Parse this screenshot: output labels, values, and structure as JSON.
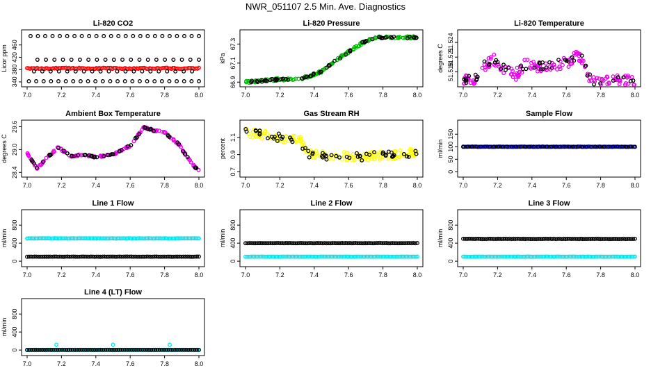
{
  "figure_title": "NWR_051107  2.5 Min. Ave. Diagnostics",
  "chart_data": [
    {
      "id": "co2",
      "type": "scatter",
      "title": "Li-820 CO2",
      "ylabel": "Licor ppm",
      "xlim": [
        7.0,
        8.0
      ],
      "xticks": [
        "7.0",
        "7.2",
        "7.4",
        "7.6",
        "7.8",
        "8.0"
      ],
      "ylim": [
        333,
        500
      ],
      "yticks": [
        {
          "v": 340,
          "label": "340"
        },
        {
          "v": 380,
          "label": "380"
        },
        {
          "v": 420,
          "label": "420"
        },
        {
          "v": 460,
          "label": "460"
        }
      ],
      "series": [
        {
          "name": "ppm",
          "color": "#ff0000",
          "pattern": "band",
          "base": 384,
          "noise": 2,
          "x_start": 7.0,
          "x_end": 8.0,
          "count": 120
        },
        {
          "name": "ppm-high",
          "color": "#000000",
          "pattern": "band",
          "base": 489,
          "noise": 0,
          "x_start": 7.02,
          "x_end": 8.0,
          "count": 24
        },
        {
          "name": "ppm-mid",
          "color": "#000000",
          "pattern": "band",
          "base": 412,
          "noise": 0,
          "x_start": 7.06,
          "x_end": 8.0,
          "count": 20
        },
        {
          "name": "ppm-below",
          "color": "#000000",
          "pattern": "band",
          "base": 374,
          "noise": 0,
          "x_start": 7.04,
          "x_end": 7.96,
          "count": 20
        },
        {
          "name": "ppm-low",
          "color": "#000000",
          "pattern": "band",
          "base": 342,
          "noise": 0,
          "x_start": 7.01,
          "x_end": 8.0,
          "count": 24
        }
      ]
    },
    {
      "id": "pressure",
      "type": "scatter",
      "title": "Li-820 Pressure",
      "ylabel": "kPa",
      "xlim": [
        7.0,
        8.0
      ],
      "xticks": [
        "7.0",
        "7.2",
        "7.4",
        "7.6",
        "7.8",
        "8.0"
      ],
      "ylim": [
        66.88,
        67.42
      ],
      "yticks": [
        {
          "v": 66.9,
          "label": "66.9"
        },
        {
          "v": 67.1,
          "label": "67.1"
        },
        {
          "v": 67.3,
          "label": "67.3"
        }
      ],
      "series": [
        {
          "name": "kPa",
          "color": "#00bb00",
          "pattern": "curve",
          "knots": [
            [
              7.0,
              66.9
            ],
            [
              7.2,
              66.93
            ],
            [
              7.32,
              66.93
            ],
            [
              7.44,
              67.01
            ],
            [
              7.56,
              67.17
            ],
            [
              7.68,
              67.31
            ],
            [
              7.75,
              67.37
            ],
            [
              8.0,
              67.37
            ]
          ],
          "noise": 0.012,
          "count": 150
        },
        {
          "name": "kPa-ref",
          "color": "#000000",
          "pattern": "curve",
          "knots": [
            [
              7.0,
              66.9
            ],
            [
              7.2,
              66.93
            ],
            [
              7.32,
              66.93
            ],
            [
              7.44,
              67.01
            ],
            [
              7.56,
              67.17
            ],
            [
              7.68,
              67.31
            ],
            [
              7.75,
              67.37
            ],
            [
              8.0,
              67.37
            ]
          ],
          "noise": 0.01,
          "count": 60
        }
      ]
    },
    {
      "id": "li820temp",
      "type": "scatter",
      "title": "Li-820 Temperature",
      "ylabel": "degrees C",
      "xlim": [
        7.0,
        8.0
      ],
      "xticks": [
        "7.0",
        "7.2",
        "7.4",
        "7.6",
        "7.8",
        "8.0"
      ],
      "ylim": [
        51.5155,
        51.526
      ],
      "yticks": [
        {
          "v": 51.518,
          "label": "51.518"
        },
        {
          "v": 51.521,
          "label": "51.521"
        },
        {
          "v": 51.524,
          "label": "51.524"
        }
      ],
      "series": [
        {
          "name": "temp",
          "color": "#ee00ee",
          "pattern": "curve",
          "knots": [
            [
              7.0,
              51.5162
            ],
            [
              7.08,
              51.5163
            ],
            [
              7.12,
              51.519
            ],
            [
              7.18,
              51.5205
            ],
            [
              7.24,
              51.5185
            ],
            [
              7.3,
              51.5172
            ],
            [
              7.36,
              51.5195
            ],
            [
              7.44,
              51.519
            ],
            [
              7.52,
              51.519
            ],
            [
              7.58,
              51.5198
            ],
            [
              7.63,
              51.52
            ],
            [
              7.66,
              51.5215
            ],
            [
              7.7,
              51.5205
            ],
            [
              7.74,
              51.5165
            ],
            [
              7.78,
              51.5162
            ],
            [
              8.0,
              51.5162
            ]
          ],
          "noise": 0.0011,
          "count": 160
        },
        {
          "name": "temp-ref",
          "color": "#000000",
          "pattern": "curve",
          "knots": [
            [
              7.0,
              51.5162
            ],
            [
              7.08,
              51.5163
            ],
            [
              7.12,
              51.519
            ],
            [
              7.18,
              51.5205
            ],
            [
              7.24,
              51.5185
            ],
            [
              7.3,
              51.5172
            ],
            [
              7.36,
              51.5195
            ],
            [
              7.44,
              51.519
            ],
            [
              7.52,
              51.519
            ],
            [
              7.58,
              51.5198
            ],
            [
              7.63,
              51.52
            ],
            [
              7.66,
              51.5215
            ],
            [
              7.7,
              51.5205
            ],
            [
              7.74,
              51.5165
            ],
            [
              7.78,
              51.5162
            ],
            [
              8.0,
              51.5162
            ]
          ],
          "noise": 0.0011,
          "count": 50
        }
      ]
    },
    {
      "id": "boxtemp",
      "type": "scatter",
      "title": "Ambient Box Temperature",
      "ylabel": "degrees C",
      "xlim": [
        7.0,
        8.0
      ],
      "xticks": [
        "7.0",
        "7.2",
        "7.4",
        "7.6",
        "7.8",
        "8.0"
      ],
      "ylim": [
        28.35,
        29.7
      ],
      "yticks": [
        {
          "v": 28.4,
          "label": "28.4"
        },
        {
          "v": 29.0,
          "label": "29.0"
        },
        {
          "v": 29.6,
          "label": "29.6"
        }
      ],
      "series": [
        {
          "name": "box",
          "color": "#ee00ee",
          "pattern": "curve",
          "knots": [
            [
              7.0,
              28.9
            ],
            [
              7.06,
              28.5
            ],
            [
              7.1,
              28.72
            ],
            [
              7.18,
              29.05
            ],
            [
              7.26,
              28.82
            ],
            [
              7.32,
              28.87
            ],
            [
              7.4,
              28.8
            ],
            [
              7.5,
              28.87
            ],
            [
              7.6,
              29.1
            ],
            [
              7.68,
              29.58
            ],
            [
              7.74,
              29.5
            ],
            [
              7.8,
              29.45
            ],
            [
              7.88,
              29.15
            ],
            [
              7.96,
              28.62
            ],
            [
              8.0,
              28.44
            ]
          ],
          "noise": 0.02,
          "count": 170
        },
        {
          "name": "box-ref",
          "color": "#000000",
          "pattern": "curve",
          "knots": [
            [
              7.0,
              28.9
            ],
            [
              7.06,
              28.5
            ],
            [
              7.1,
              28.72
            ],
            [
              7.18,
              29.05
            ],
            [
              7.26,
              28.82
            ],
            [
              7.32,
              28.87
            ],
            [
              7.4,
              28.8
            ],
            [
              7.5,
              28.87
            ],
            [
              7.6,
              29.1
            ],
            [
              7.68,
              29.58
            ],
            [
              7.74,
              29.5
            ],
            [
              7.8,
              29.45
            ],
            [
              7.88,
              29.15
            ],
            [
              7.96,
              28.62
            ],
            [
              8.0,
              28.44
            ]
          ],
          "noise": 0.02,
          "count": 55
        }
      ]
    },
    {
      "id": "rh",
      "type": "scatter",
      "title": "Gas Stream RH",
      "ylabel": "percent",
      "xlim": [
        7.0,
        8.0
      ],
      "xticks": [
        "7.0",
        "7.2",
        "7.4",
        "7.6",
        "7.8",
        "8.0"
      ],
      "ylim": [
        0.67,
        1.27
      ],
      "yticks": [
        {
          "v": 0.7,
          "label": "0.7"
        },
        {
          "v": 0.9,
          "label": "0.9"
        },
        {
          "v": 1.1,
          "label": "1.1"
        }
      ],
      "series": [
        {
          "name": "rh",
          "color": "#ffff00",
          "pattern": "curve",
          "knots": [
            [
              7.0,
              1.16
            ],
            [
              7.2,
              1.1
            ],
            [
              7.32,
              1.06
            ],
            [
              7.36,
              0.92
            ],
            [
              7.5,
              0.88
            ],
            [
              7.7,
              0.88
            ],
            [
              7.9,
              0.9
            ],
            [
              8.0,
              0.93
            ]
          ],
          "noise": 0.05,
          "count": 170
        },
        {
          "name": "rh-ref",
          "color": "#000000",
          "pattern": "curve",
          "knots": [
            [
              7.0,
              1.16
            ],
            [
              7.2,
              1.1
            ],
            [
              7.32,
              1.06
            ],
            [
              7.36,
              0.92
            ],
            [
              7.5,
              0.88
            ],
            [
              7.7,
              0.88
            ],
            [
              7.9,
              0.9
            ],
            [
              8.0,
              0.93
            ]
          ],
          "noise": 0.05,
          "count": 60
        }
      ]
    },
    {
      "id": "sampleflow",
      "type": "scatter",
      "title": "Sample Flow",
      "ylabel": "ml/min",
      "xlim": [
        7.0,
        8.0
      ],
      "xticks": [
        "7.0",
        "7.2",
        "7.4",
        "7.6",
        "7.8",
        "8.0"
      ],
      "ylim": [
        -10,
        195
      ],
      "yticks": [
        {
          "v": 0,
          "label": "0"
        },
        {
          "v": 50,
          "label": "50"
        },
        {
          "v": 100,
          "label": "100"
        },
        {
          "v": 150,
          "label": "150"
        }
      ],
      "series": [
        {
          "name": "flow",
          "color": "#0000bb",
          "pattern": "band",
          "base": 100,
          "noise": 0.6,
          "x_start": 7.0,
          "x_end": 8.0,
          "count": 130
        },
        {
          "name": "flow-ref",
          "color": "#000000",
          "pattern": "band",
          "base": 100,
          "noise": 0.4,
          "x_start": 7.0,
          "x_end": 8.0,
          "count": 40
        }
      ]
    },
    {
      "id": "line1",
      "type": "scatter",
      "title": "Line 1 Flow",
      "ylabel": "ml/min",
      "xlim": [
        7.0,
        8.0
      ],
      "xticks": [
        "7.0",
        "7.2",
        "7.4",
        "7.6",
        "7.8",
        "8.0"
      ],
      "ylim": [
        -60,
        1080
      ],
      "yticks": [
        {
          "v": 0,
          "label": "0"
        },
        {
          "v": 400,
          "label": "400"
        },
        {
          "v": 800,
          "label": "800"
        }
      ],
      "series": [
        {
          "name": "line1-cyan",
          "color": "#00e5ee",
          "pattern": "band",
          "base": 505,
          "noise": 3,
          "x_start": 7.0,
          "x_end": 8.0,
          "count": 120
        },
        {
          "name": "line1-black",
          "color": "#000000",
          "pattern": "band",
          "base": 100,
          "noise": 2,
          "x_start": 7.0,
          "x_end": 8.0,
          "count": 90
        }
      ]
    },
    {
      "id": "line2",
      "type": "scatter",
      "title": "Line 2 Flow",
      "ylabel": "ml/min",
      "xlim": [
        7.0,
        8.0
      ],
      "xticks": [
        "7.0",
        "7.2",
        "7.4",
        "7.6",
        "7.8",
        "8.0"
      ],
      "ylim": [
        -60,
        1080
      ],
      "yticks": [
        {
          "v": 0,
          "label": "0"
        },
        {
          "v": 400,
          "label": "400"
        },
        {
          "v": 800,
          "label": "800"
        }
      ],
      "series": [
        {
          "name": "line2-cyan",
          "color": "#00e5ee",
          "pattern": "band",
          "base": 100,
          "noise": 2,
          "x_start": 7.0,
          "x_end": 8.0,
          "count": 120
        },
        {
          "name": "line2-black",
          "color": "#000000",
          "pattern": "band",
          "base": 400,
          "noise": 3,
          "x_start": 7.0,
          "x_end": 8.0,
          "count": 90
        }
      ]
    },
    {
      "id": "line3",
      "type": "scatter",
      "title": "Line 3 Flow",
      "ylabel": "ml/min",
      "xlim": [
        7.0,
        8.0
      ],
      "xticks": [
        "7.0",
        "7.2",
        "7.4",
        "7.6",
        "7.8",
        "8.0"
      ],
      "ylim": [
        -60,
        1080
      ],
      "yticks": [
        {
          "v": 0,
          "label": "0"
        },
        {
          "v": 400,
          "label": "400"
        },
        {
          "v": 800,
          "label": "800"
        }
      ],
      "series": [
        {
          "name": "line3-cyan",
          "color": "#00e5ee",
          "pattern": "band",
          "base": 100,
          "noise": 2,
          "x_start": 7.0,
          "x_end": 8.0,
          "count": 120
        },
        {
          "name": "line3-black",
          "color": "#000000",
          "pattern": "band",
          "base": 495,
          "noise": 3,
          "x_start": 7.0,
          "x_end": 8.0,
          "count": 90
        }
      ]
    },
    {
      "id": "line4",
      "type": "scatter",
      "title": "Line 4 (LT) Flow",
      "ylabel": "ml/min",
      "xlim": [
        7.0,
        8.0
      ],
      "xticks": [
        "7.0",
        "7.2",
        "7.4",
        "7.6",
        "7.8",
        "8.0"
      ],
      "ylim": [
        -60,
        1080
      ],
      "yticks": [
        {
          "v": 0,
          "label": "0"
        },
        {
          "v": 400,
          "label": "400"
        },
        {
          "v": 800,
          "label": "800"
        }
      ],
      "series": [
        {
          "name": "line4-cyan",
          "color": "#00e5ee",
          "pattern": "band",
          "base": 4,
          "noise": 1,
          "x_start": 7.0,
          "x_end": 8.0,
          "count": 120
        },
        {
          "name": "line4-black",
          "color": "#000000",
          "pattern": "band",
          "base": 4,
          "noise": 1,
          "x_start": 7.0,
          "x_end": 8.0,
          "count": 80
        },
        {
          "name": "line4-spikes",
          "color": "#00e5ee",
          "pattern": "points",
          "x": [
            7.17,
            7.5,
            7.83
          ],
          "y": [
            120,
            120,
            120
          ]
        }
      ]
    }
  ]
}
